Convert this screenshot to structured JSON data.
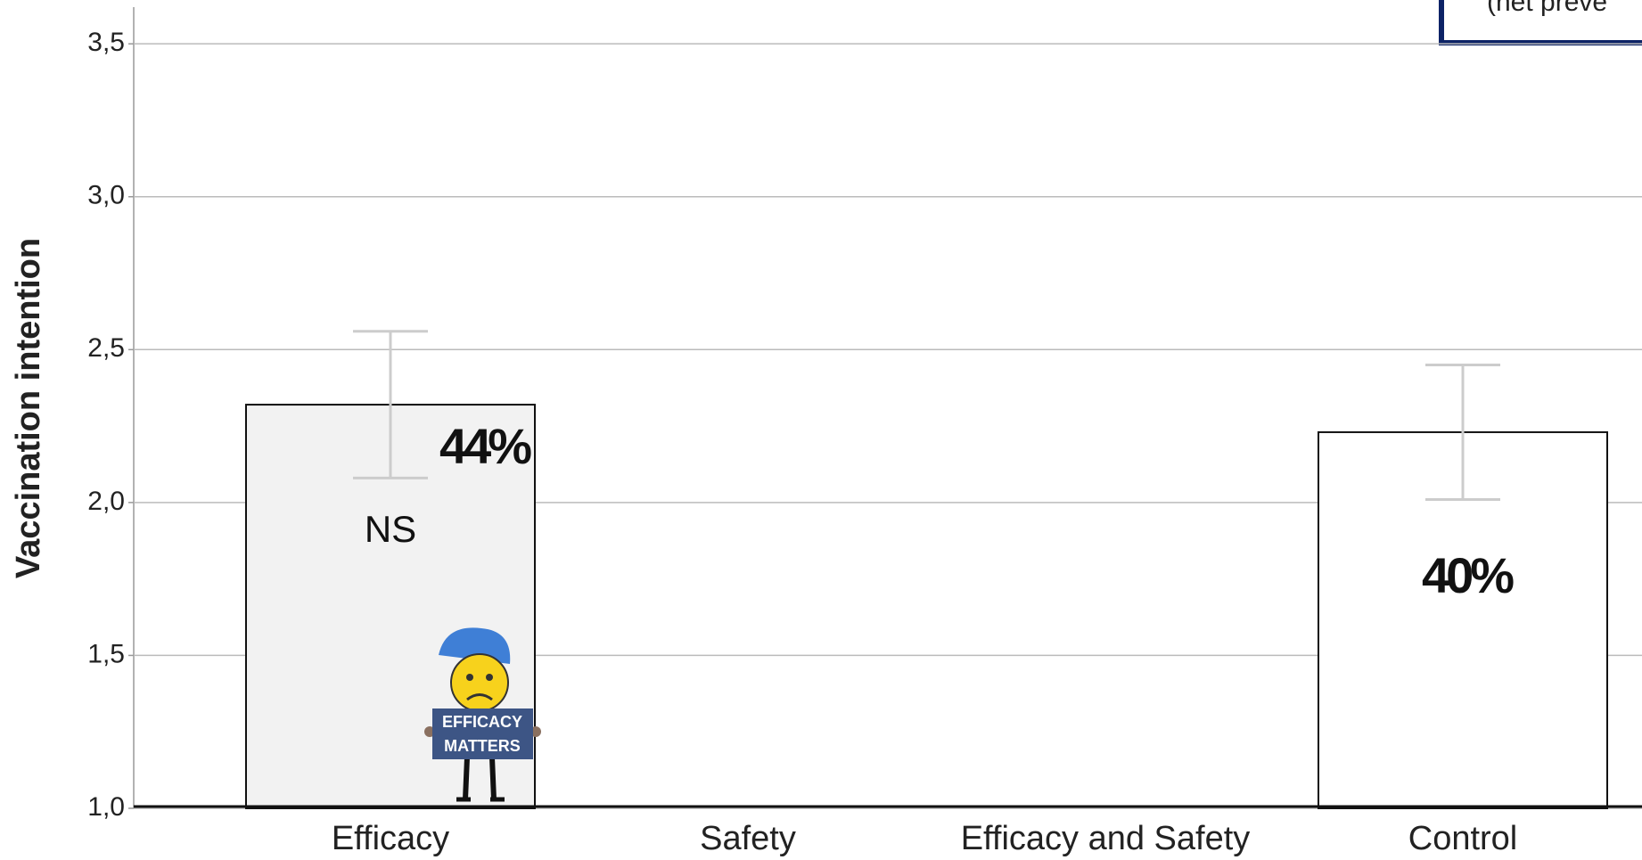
{
  "chart_data": {
    "type": "bar",
    "y_label": "Vaccination intention",
    "categories": [
      "Efficacy",
      "Safety",
      "Efficacy and Safety",
      "Control"
    ],
    "values": [
      2.32,
      null,
      null,
      2.23
    ],
    "errors": [
      0.24,
      null,
      null,
      0.22
    ],
    "percent_labels": [
      "44%",
      null,
      null,
      "40%"
    ],
    "significance_labels": [
      "NS",
      null,
      null,
      null
    ],
    "bar_colors": [
      "#f2f2f2",
      null,
      null,
      "#ffffff"
    ],
    "ylim": [
      1.0,
      3.62
    ],
    "yticks": [
      {
        "value": 1.0,
        "label": "1,0"
      },
      {
        "value": 1.5,
        "label": "1,5"
      },
      {
        "value": 2.0,
        "label": "2,0"
      },
      {
        "value": 2.5,
        "label": "2,5"
      },
      {
        "value": 3.0,
        "label": "3,0"
      },
      {
        "value": 3.5,
        "label": "3,5"
      }
    ],
    "grid": true,
    "sign_text": [
      "EFFICACY",
      "MATTERS"
    ],
    "box_text": "(net preve"
  }
}
